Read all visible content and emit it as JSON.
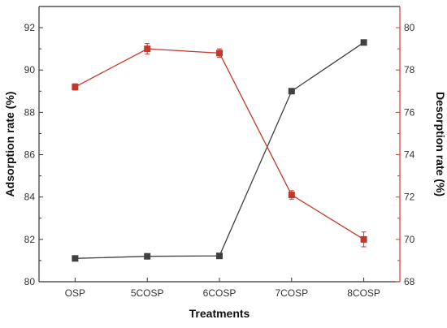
{
  "chart_data": {
    "type": "line",
    "categories": [
      "OSP",
      "5COSP",
      "6COSP",
      "7COSP",
      "8COSP"
    ],
    "xlabel": "Treatments",
    "ylabel_left": "Adsorption rate (%)",
    "ylabel_right": "Desorption rate (%)",
    "ylim_left": [
      80,
      93
    ],
    "yticks_left": [
      "80",
      "82",
      "84",
      "86",
      "88",
      "90",
      "92"
    ],
    "ylim_right": [
      68,
      81
    ],
    "yticks_right": [
      "68",
      "70",
      "72",
      "74",
      "76",
      "78",
      "80"
    ],
    "grid": false,
    "series": [
      {
        "axis": "left",
        "color": "#404040",
        "marker": "square",
        "values": [
          81.1,
          81.2,
          81.22,
          89.0,
          91.3
        ]
      },
      {
        "axis": "right",
        "color": "#c0392b",
        "marker": "square",
        "values": [
          77.2,
          79.0,
          78.8,
          72.1,
          70.0
        ],
        "errors": [
          0.15,
          0.25,
          0.2,
          0.2,
          0.35
        ]
      }
    ]
  },
  "colors": {
    "left_axis": "#333333",
    "right_axis": "#d9382e"
  }
}
